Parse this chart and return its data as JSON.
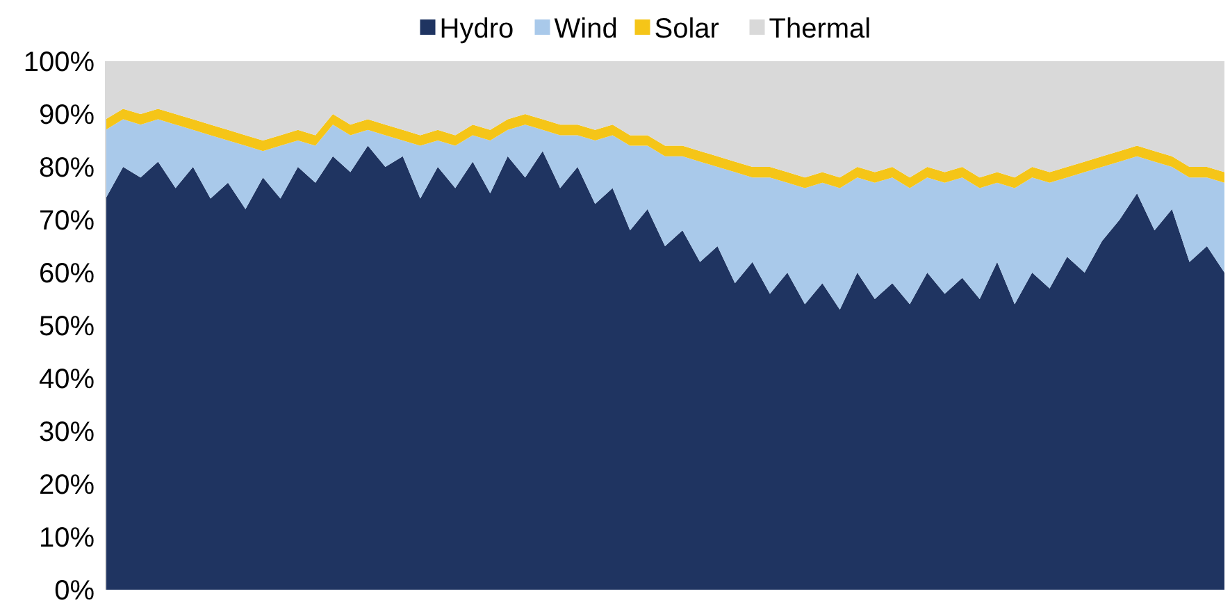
{
  "chart_data": {
    "type": "area",
    "stacked": true,
    "legend": "top",
    "categories": [
      null,
      null,
      null,
      null,
      null,
      null,
      null,
      null,
      null,
      null,
      null,
      null,
      null,
      null,
      null,
      null,
      null,
      null,
      null,
      null,
      null,
      null,
      null,
      null,
      null,
      null,
      null,
      null,
      null,
      null,
      null,
      null,
      null,
      null,
      null,
      null,
      null,
      null,
      null,
      null,
      null,
      null,
      null,
      null,
      null,
      null,
      null,
      null,
      null,
      null,
      null,
      null,
      null,
      null,
      null,
      null,
      null,
      null,
      null,
      null,
      null,
      null,
      null,
      null,
      null
    ],
    "ylim": [
      0,
      100
    ],
    "yticks": [
      {
        "value": 0,
        "label": "0%"
      },
      {
        "value": 10,
        "label": "10%"
      },
      {
        "value": 20,
        "label": "20%"
      },
      {
        "value": 30,
        "label": "30%"
      },
      {
        "value": 40,
        "label": "40%"
      },
      {
        "value": 50,
        "label": "50%"
      },
      {
        "value": 60,
        "label": "60%"
      },
      {
        "value": 70,
        "label": "70%"
      },
      {
        "value": 80,
        "label": "80%"
      },
      {
        "value": 90,
        "label": "90%"
      },
      {
        "value": 100,
        "label": "100%"
      }
    ],
    "series": [
      {
        "name": "Hydro",
        "color": "#1f3461",
        "values": [
          74,
          80,
          78,
          81,
          76,
          80,
          74,
          77,
          72,
          78,
          74,
          80,
          77,
          82,
          79,
          84,
          80,
          82,
          74,
          80,
          76,
          81,
          75,
          82,
          78,
          83,
          76,
          80,
          73,
          76,
          68,
          72,
          65,
          68,
          62,
          65,
          58,
          62,
          56,
          60,
          54,
          58,
          53,
          60,
          55,
          58,
          54,
          60,
          56,
          59,
          55,
          62,
          54,
          60,
          57,
          63,
          60,
          66,
          70,
          75,
          68,
          72,
          62,
          65,
          60
        ]
      },
      {
        "name": "Wind",
        "color": "#a9c9ea",
        "values": [
          13,
          9,
          10,
          8,
          12,
          7,
          12,
          8,
          12,
          5,
          10,
          5,
          7,
          6,
          7,
          3,
          6,
          3,
          10,
          5,
          8,
          5,
          10,
          5,
          10,
          4,
          10,
          6,
          12,
          10,
          16,
          12,
          17,
          14,
          19,
          15,
          21,
          16,
          22,
          17,
          22,
          19,
          23,
          18,
          22,
          20,
          22,
          18,
          21,
          19,
          21,
          15,
          22,
          18,
          20,
          15,
          19,
          14,
          11,
          7,
          13,
          8,
          16,
          13,
          17
        ]
      },
      {
        "name": "Solar",
        "color": "#f5c518",
        "values": [
          2,
          2,
          2,
          2,
          2,
          2,
          2,
          2,
          2,
          2,
          2,
          2,
          2,
          2,
          2,
          2,
          2,
          2,
          2,
          2,
          2,
          2,
          2,
          2,
          2,
          2,
          2,
          2,
          2,
          2,
          2,
          2,
          2,
          2,
          2,
          2,
          2,
          2,
          2,
          2,
          2,
          2,
          2,
          2,
          2,
          2,
          2,
          2,
          2,
          2,
          2,
          2,
          2,
          2,
          2,
          2,
          2,
          2,
          2,
          2,
          2,
          2,
          2,
          2,
          2
        ]
      },
      {
        "name": "Thermal",
        "color": "#d9d9d9",
        "values": [
          11,
          9,
          10,
          9,
          10,
          11,
          12,
          13,
          14,
          15,
          14,
          13,
          14,
          10,
          12,
          11,
          12,
          13,
          14,
          13,
          14,
          12,
          13,
          11,
          10,
          11,
          12,
          12,
          13,
          12,
          14,
          14,
          16,
          16,
          17,
          18,
          19,
          20,
          20,
          21,
          22,
          21,
          22,
          20,
          21,
          20,
          22,
          20,
          21,
          20,
          22,
          21,
          22,
          20,
          21,
          20,
          19,
          18,
          17,
          16,
          17,
          18,
          20,
          20,
          21
        ]
      }
    ]
  }
}
